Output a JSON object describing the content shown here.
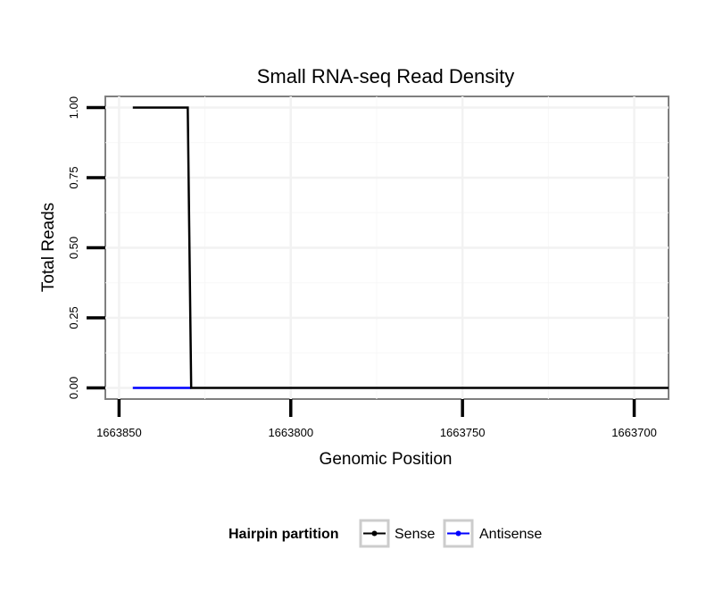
{
  "chart_data": {
    "type": "line",
    "title": "Small RNA-seq Read Density",
    "xlabel": "Genomic Position",
    "ylabel": "Total Reads",
    "x_reversed": true,
    "xlim": [
      1663854,
      1663690
    ],
    "ylim": [
      -0.04,
      1.04
    ],
    "x_ticks": [
      1663850,
      1663800,
      1663750,
      1663700
    ],
    "x_tick_labels": [
      "1663850",
      "1663800",
      "1663750",
      "1663700"
    ],
    "y_ticks": [
      0,
      0.25,
      0.5,
      0.75,
      1.0
    ],
    "y_tick_labels": [
      "0.00",
      "0.25",
      "0.50",
      "0.75",
      "1.00"
    ],
    "grid": true,
    "legend": {
      "title": "Hairpin partition",
      "position": "bottom"
    },
    "series": [
      {
        "name": "Sense",
        "color": "#000000",
        "x": [
          1663846,
          1663830,
          1663829,
          1663690
        ],
        "values": [
          1.0,
          1.0,
          0.0,
          0.0
        ]
      },
      {
        "name": "Antisense",
        "color": "#0000ff",
        "x": [
          1663846,
          1663829
        ],
        "values": [
          0.0,
          0.0
        ]
      }
    ]
  }
}
